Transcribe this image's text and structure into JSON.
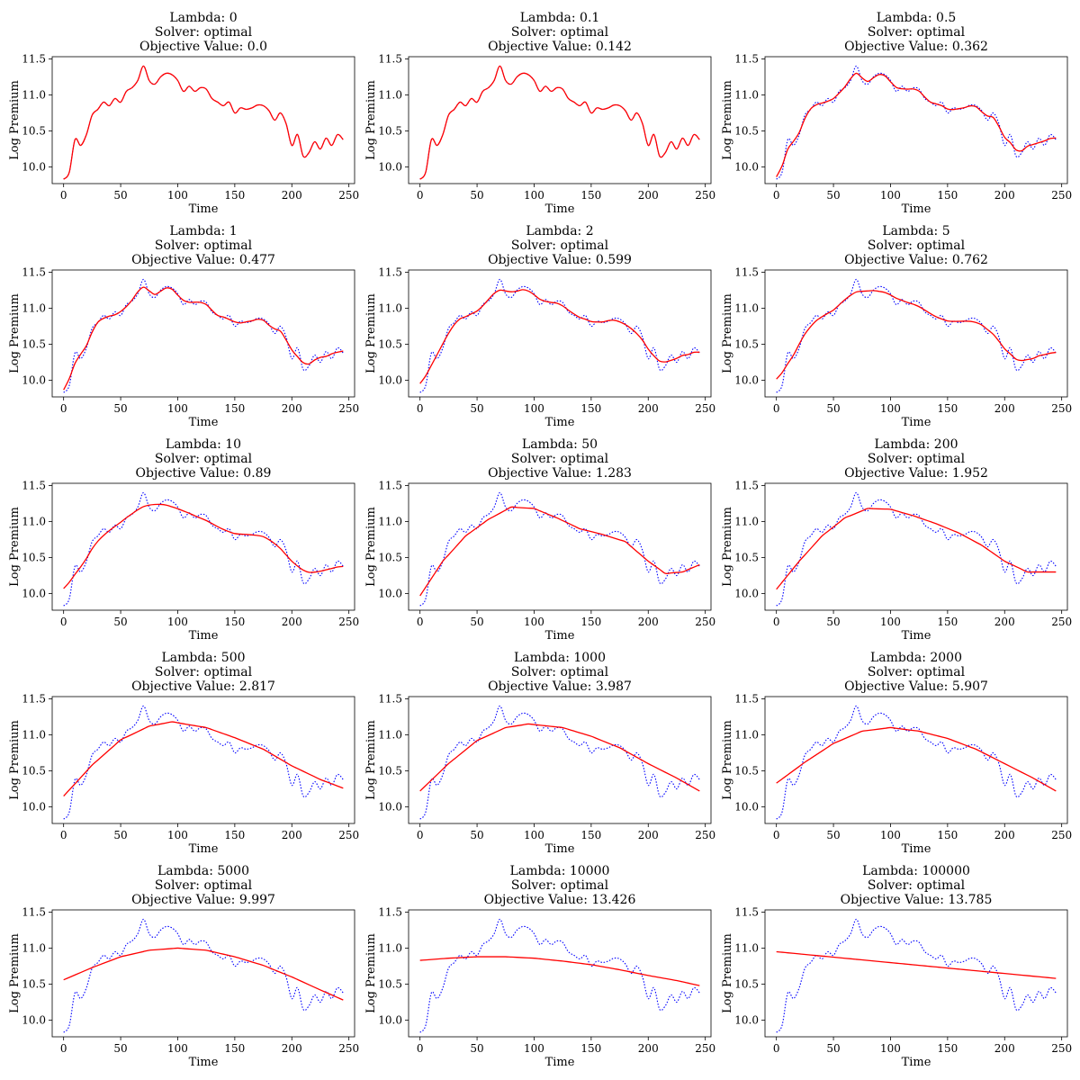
{
  "figure": {
    "common": {
      "xlabel": "Time",
      "ylabel": "Log Premium",
      "xlim": [
        -10,
        255
      ],
      "ylim": [
        9.77,
        11.53
      ],
      "xticks": [
        0,
        50,
        100,
        150,
        200,
        250
      ],
      "yticks": [
        10.0,
        10.5,
        11.0,
        11.5
      ],
      "ytick_labels": [
        "10.0",
        "10.5",
        "11.0",
        "11.5"
      ],
      "colors": {
        "data": "#0000ff",
        "fit": "#ff0000"
      },
      "data_style": "dotted blue line",
      "fit_style": "solid red line"
    }
  },
  "observed": {
    "x": [
      0,
      5,
      10,
      15,
      20,
      25,
      30,
      35,
      40,
      45,
      50,
      55,
      60,
      65,
      70,
      75,
      80,
      85,
      90,
      95,
      100,
      105,
      110,
      115,
      120,
      125,
      130,
      135,
      140,
      145,
      150,
      155,
      160,
      165,
      170,
      175,
      180,
      185,
      190,
      195,
      200,
      205,
      210,
      215,
      220,
      225,
      230,
      235,
      240,
      245
    ],
    "y": [
      9.83,
      9.93,
      10.38,
      10.3,
      10.45,
      10.72,
      10.8,
      10.9,
      10.85,
      10.95,
      10.9,
      11.05,
      11.1,
      11.2,
      11.4,
      11.2,
      11.15,
      11.25,
      11.3,
      11.28,
      11.2,
      11.05,
      11.12,
      11.05,
      11.1,
      11.08,
      10.95,
      10.9,
      10.85,
      10.9,
      10.75,
      10.82,
      10.8,
      10.82,
      10.86,
      10.85,
      10.78,
      10.65,
      10.75,
      10.6,
      10.3,
      10.45,
      10.15,
      10.2,
      10.35,
      10.25,
      10.4,
      10.3,
      10.45,
      10.38
    ]
  },
  "panels": [
    {
      "lambda": "Lambda: 0",
      "solver": "Solver: optimal",
      "objective": "Objective Value: 0.0",
      "fit": {
        "type": "observed"
      }
    },
    {
      "lambda": "Lambda: 0.1",
      "solver": "Solver: optimal",
      "objective": "Objective Value: 0.142",
      "fit": {
        "type": "smooth",
        "window": 0.6
      }
    },
    {
      "lambda": "Lambda: 0.5",
      "solver": "Solver: optimal",
      "objective": "Objective Value: 0.362",
      "fit": {
        "type": "smooth",
        "window": 1.0
      }
    },
    {
      "lambda": "Lambda: 1",
      "solver": "Solver: optimal",
      "objective": "Objective Value: 0.477",
      "fit": {
        "type": "smooth",
        "window": 1.5
      }
    },
    {
      "lambda": "Lambda: 2",
      "solver": "Solver: optimal",
      "objective": "Objective Value: 0.599",
      "fit": {
        "type": "smooth",
        "window": 2
      }
    },
    {
      "lambda": "Lambda: 5",
      "solver": "Solver: optimal",
      "objective": "Objective Value: 0.762",
      "fit": {
        "type": "smooth",
        "window": 3
      }
    },
    {
      "lambda": "Lambda: 10",
      "solver": "Solver: optimal",
      "objective": "Objective Value: 0.89",
      "fit": {
        "type": "smooth",
        "window": 4
      }
    },
    {
      "lambda": "Lambda: 50",
      "solver": "Solver: optimal",
      "objective": "Objective Value: 1.283",
      "fit": {
        "type": "points",
        "x": [
          0,
          20,
          40,
          60,
          80,
          100,
          120,
          140,
          160,
          180,
          200,
          215,
          230,
          245
        ],
        "y": [
          9.97,
          10.45,
          10.8,
          11.03,
          11.2,
          11.18,
          11.05,
          10.9,
          10.82,
          10.72,
          10.45,
          10.28,
          10.3,
          10.4
        ]
      }
    },
    {
      "lambda": "Lambda: 200",
      "solver": "Solver: optimal",
      "objective": "Objective Value: 1.952",
      "fit": {
        "type": "points",
        "x": [
          0,
          20,
          40,
          60,
          80,
          100,
          120,
          140,
          160,
          180,
          200,
          220,
          245
        ],
        "y": [
          10.06,
          10.45,
          10.8,
          11.05,
          11.18,
          11.17,
          11.08,
          10.97,
          10.84,
          10.67,
          10.45,
          10.3,
          10.3
        ]
      }
    },
    {
      "lambda": "Lambda: 500",
      "solver": "Solver: optimal",
      "objective": "Objective Value: 2.817",
      "fit": {
        "type": "points",
        "x": [
          0,
          25,
          50,
          75,
          95,
          125,
          150,
          175,
          200,
          225,
          245
        ],
        "y": [
          10.15,
          10.58,
          10.93,
          11.12,
          11.18,
          11.1,
          10.96,
          10.8,
          10.57,
          10.38,
          10.26
        ]
      }
    },
    {
      "lambda": "Lambda: 1000",
      "solver": "Solver: optimal",
      "objective": "Objective Value: 3.987",
      "fit": {
        "type": "points",
        "x": [
          0,
          25,
          50,
          75,
          95,
          125,
          150,
          175,
          200,
          225,
          245
        ],
        "y": [
          10.22,
          10.6,
          10.92,
          11.1,
          11.15,
          11.1,
          10.98,
          10.82,
          10.6,
          10.4,
          10.22
        ]
      }
    },
    {
      "lambda": "Lambda: 2000",
      "solver": "Solver: optimal",
      "objective": "Objective Value: 5.907",
      "fit": {
        "type": "points",
        "x": [
          0,
          25,
          50,
          75,
          100,
          125,
          150,
          175,
          200,
          225,
          245
        ],
        "y": [
          10.33,
          10.62,
          10.88,
          11.05,
          11.1,
          11.05,
          10.95,
          10.8,
          10.6,
          10.4,
          10.22
        ]
      }
    },
    {
      "lambda": "Lambda: 5000",
      "solver": "Solver: optimal",
      "objective": "Objective Value: 9.997",
      "fit": {
        "type": "points",
        "x": [
          0,
          25,
          50,
          75,
          100,
          125,
          150,
          175,
          200,
          225,
          245
        ],
        "y": [
          10.56,
          10.73,
          10.88,
          10.97,
          11.0,
          10.97,
          10.88,
          10.76,
          10.6,
          10.42,
          10.28
        ]
      }
    },
    {
      "lambda": "Lambda: 10000",
      "solver": "Solver: optimal",
      "objective": "Objective Value: 13.426",
      "fit": {
        "type": "points",
        "x": [
          0,
          25,
          50,
          75,
          100,
          125,
          150,
          175,
          200,
          225,
          245
        ],
        "y": [
          10.83,
          10.86,
          10.88,
          10.88,
          10.86,
          10.82,
          10.77,
          10.7,
          10.62,
          10.55,
          10.48
        ]
      }
    },
    {
      "lambda": "Lambda: 100000",
      "solver": "Solver: optimal",
      "objective": "Objective Value: 13.785",
      "fit": {
        "type": "points",
        "x": [
          0,
          245
        ],
        "y": [
          10.95,
          10.58
        ]
      }
    }
  ],
  "chart_data": [
    {
      "type": "line",
      "title": "Lambda: 0 / Solver: optimal / Objective Value: 0.0",
      "xlabel": "Time",
      "ylabel": "Log Premium",
      "series": [
        {
          "name": "",
          "values": "observed.y"
        },
        {
          "name": "",
          "values": "observed.y"
        }
      ]
    }
  ]
}
